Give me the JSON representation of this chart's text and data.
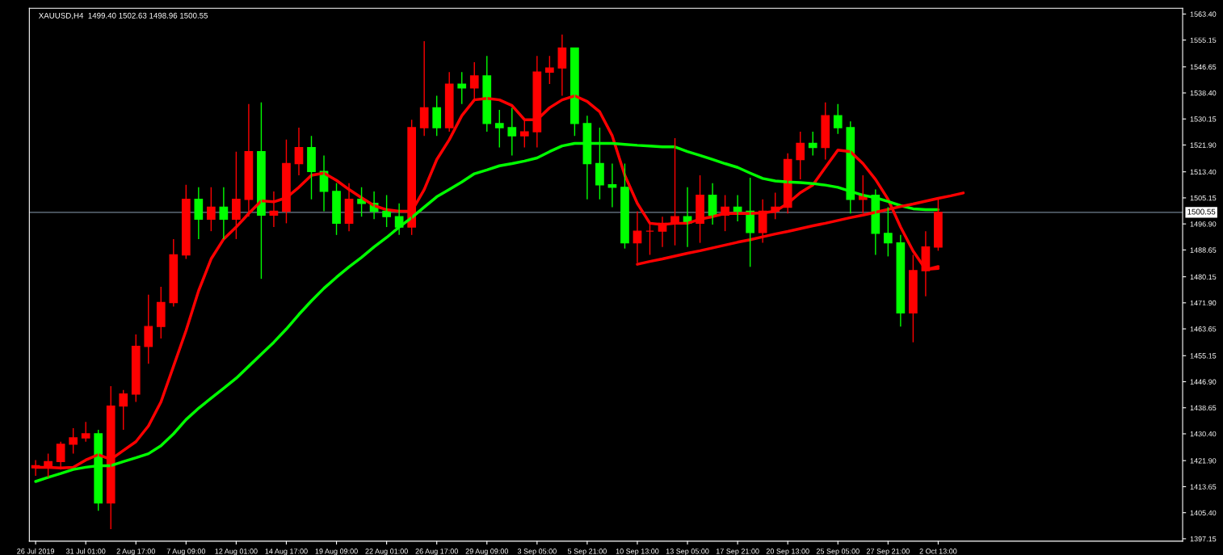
{
  "chart_data": {
    "type": "candlestick",
    "title": "XAUUSD,H4  1499.40 1502.63 1498.96 1500.55",
    "categories": [
      "26 Jul 2019",
      null,
      null,
      null,
      "31 Jul 01:00",
      null,
      null,
      null,
      "2 Aug 17:00",
      null,
      null,
      null,
      "7 Aug 09:00",
      null,
      null,
      null,
      "12 Aug 01:00",
      null,
      null,
      null,
      "14 Aug 17:00",
      null,
      null,
      null,
      "19 Aug 09:00",
      null,
      null,
      null,
      "22 Aug 01:00",
      null,
      null,
      null,
      "26 Aug 17:00",
      null,
      null,
      null,
      "29 Aug 09:00",
      null,
      null,
      null,
      "3 Sep 05:00",
      null,
      null,
      null,
      "5 Sep 21:00",
      null,
      null,
      null,
      "10 Sep 13:00",
      null,
      null,
      null,
      "13 Sep 05:00",
      null,
      null,
      null,
      "17 Sep 21:00",
      null,
      null,
      null,
      "20 Sep 13:00",
      null,
      null,
      null,
      "25 Sep 05:00",
      null,
      null,
      null,
      "27 Sep 21:00",
      null,
      null,
      null,
      "2 Oct 13:00",
      null,
      null,
      null,
      null,
      null,
      null,
      null,
      null,
      null,
      null,
      null,
      null,
      null,
      null,
      null,
      null,
      null,
      null,
      null
    ],
    "ohlc": [
      [
        1419.6,
        1422.1,
        1417.1,
        1420.3
      ],
      [
        1420.3,
        1424.1,
        1416.6,
        1421.6
      ],
      [
        1421.6,
        1427.9,
        1419.1,
        1427.1
      ],
      [
        1427.1,
        1432.2,
        1424.1,
        1429.1
      ],
      [
        1429.1,
        1434.2,
        1427.9,
        1430.4
      ],
      [
        1430.4,
        1431.7,
        1406.0,
        1408.5
      ],
      [
        1408.5,
        1445.5,
        1400.2,
        1439.2
      ],
      [
        1439.2,
        1444.3,
        1431.7,
        1443.0
      ],
      [
        1443.0,
        1461.9,
        1440.5,
        1458.1
      ],
      [
        1458.1,
        1474.5,
        1452.6,
        1464.4
      ],
      [
        1464.4,
        1477.0,
        1460.6,
        1472.0
      ],
      [
        1472.0,
        1492.1,
        1470.7,
        1487.1
      ],
      [
        1487.1,
        1509.3,
        1485.8,
        1504.7
      ],
      [
        1504.7,
        1508.5,
        1492.1,
        1498.4
      ],
      [
        1498.4,
        1508.5,
        1494.6,
        1502.2
      ],
      [
        1502.2,
        1508.5,
        1492.1,
        1498.4
      ],
      [
        1498.4,
        1519.8,
        1492.1,
        1504.7
      ],
      [
        1504.7,
        1534.9,
        1499.2,
        1519.8
      ],
      [
        1519.8,
        1535.4,
        1479.5,
        1499.7
      ],
      [
        1499.7,
        1507.2,
        1495.9,
        1500.9
      ],
      [
        1500.9,
        1523.6,
        1497.1,
        1516.0
      ],
      [
        1516.0,
        1527.4,
        1512.3,
        1521.1
      ],
      [
        1521.1,
        1524.8,
        1504.7,
        1513.5
      ],
      [
        1513.5,
        1518.6,
        1500.9,
        1507.2
      ],
      [
        1507.2,
        1509.8,
        1493.4,
        1497.1
      ],
      [
        1497.1,
        1509.8,
        1494.6,
        1504.7
      ],
      [
        1504.7,
        1508.5,
        1499.2,
        1503.4
      ],
      [
        1503.4,
        1507.2,
        1498.4,
        1500.9
      ],
      [
        1500.9,
        1506.0,
        1495.9,
        1499.2
      ],
      [
        1499.2,
        1503.4,
        1493.4,
        1495.9
      ],
      [
        1495.9,
        1529.9,
        1493.4,
        1527.4
      ],
      [
        1527.4,
        1554.8,
        1524.8,
        1533.7
      ],
      [
        1533.7,
        1537.5,
        1524.8,
        1527.4
      ],
      [
        1527.4,
        1545.0,
        1526.1,
        1541.2
      ],
      [
        1541.2,
        1545.0,
        1534.9,
        1540.0
      ],
      [
        1540.0,
        1548.1,
        1536.2,
        1543.8
      ],
      [
        1543.8,
        1550.1,
        1526.1,
        1528.7
      ],
      [
        1528.7,
        1533.0,
        1521.1,
        1527.4
      ],
      [
        1527.4,
        1533.7,
        1518.6,
        1524.8
      ],
      [
        1524.8,
        1529.9,
        1521.1,
        1526.1
      ],
      [
        1526.1,
        1550.1,
        1521.1,
        1545.0
      ],
      [
        1545.0,
        1550.1,
        1541.2,
        1546.3
      ],
      [
        1546.3,
        1556.9,
        1537.5,
        1552.6
      ],
      [
        1552.6,
        1552.6,
        1524.8,
        1528.7
      ],
      [
        1528.7,
        1531.2,
        1504.7,
        1516.0
      ],
      [
        1516.0,
        1527.4,
        1504.7,
        1509.3
      ],
      [
        1509.3,
        1516.0,
        1502.2,
        1508.5
      ],
      [
        1508.5,
        1516.0,
        1489.1,
        1490.9
      ],
      [
        1490.9,
        1500.9,
        1484.6,
        1494.6
      ],
      [
        1494.6,
        1497.1,
        1487.1,
        1494.6
      ],
      [
        1494.6,
        1499.2,
        1489.6,
        1497.1
      ],
      [
        1497.1,
        1524.1,
        1490.1,
        1499.2
      ],
      [
        1499.2,
        1508.5,
        1489.6,
        1497.1
      ],
      [
        1497.1,
        1512.3,
        1490.9,
        1506.0
      ],
      [
        1506.0,
        1509.8,
        1496.7,
        1499.7
      ],
      [
        1499.7,
        1506.0,
        1494.6,
        1502.2
      ],
      [
        1502.2,
        1506.0,
        1497.7,
        1500.9
      ],
      [
        1500.9,
        1511.5,
        1483.3,
        1494.2
      ],
      [
        1494.2,
        1504.7,
        1490.9,
        1500.9
      ],
      [
        1500.9,
        1506.8,
        1498.4,
        1502.2
      ],
      [
        1502.2,
        1519.3,
        1500.2,
        1517.3
      ],
      [
        1517.3,
        1526.1,
        1511.0,
        1522.4
      ],
      [
        1522.4,
        1526.1,
        1518.6,
        1521.1
      ],
      [
        1521.1,
        1535.4,
        1517.3,
        1531.2
      ],
      [
        1531.2,
        1534.9,
        1525.4,
        1527.4
      ],
      [
        1527.4,
        1529.4,
        1500.2,
        1504.7
      ],
      [
        1504.7,
        1512.3,
        1500.2,
        1506.0
      ],
      [
        1506.0,
        1507.8,
        1487.1,
        1493.9
      ],
      [
        1493.9,
        1502.2,
        1486.6,
        1490.9
      ],
      [
        1490.9,
        1493.4,
        1464.4,
        1468.7
      ],
      [
        1468.7,
        1487.1,
        1459.4,
        1482.1
      ],
      [
        1482.1,
        1494.6,
        1474.0,
        1489.6
      ],
      [
        1489.6,
        1504.7,
        1488.4,
        1500.55
      ],
      null,
      null,
      null,
      null,
      null,
      null,
      null,
      null,
      null,
      null,
      null,
      null,
      null,
      null,
      null,
      null,
      null,
      null,
      null
    ],
    "series": [
      {
        "type": "line",
        "color": "#ff0000",
        "values": [
          1419.8,
          1419.8,
          1419.6,
          1419.8,
          1422.1,
          1423.8,
          1422.3,
          1425.1,
          1427.9,
          1432.9,
          1440.5,
          1451.8,
          1463.1,
          1475.7,
          1485.8,
          1492.1,
          1495.9,
          1500.2,
          1504.2,
          1503.9,
          1505.2,
          1508.5,
          1512.3,
          1513.0,
          1510.7,
          1507.8,
          1505.2,
          1502.7,
          1501.4,
          1500.9,
          1500.9,
          1507.8,
          1517.3,
          1523.6,
          1531.2,
          1536.2,
          1536.7,
          1536.2,
          1534.4,
          1529.9,
          1529.9,
          1533.7,
          1536.2,
          1537.5,
          1535.7,
          1532.4,
          1524.8,
          1512.3,
          1503.4,
          1497.1,
          1496.7,
          1497.1,
          1497.1,
          1498.4,
          1499.2,
          1500.2,
          1500.2,
          1500.2,
          1500.4,
          1500.9,
          1503.4,
          1506.8,
          1509.2,
          1514.8,
          1520.3,
          1519.8,
          1516.0,
          1511.0,
          1504.7,
          1495.9,
          1488.3,
          1482.5,
          1482.8,
          null,
          null,
          null,
          null,
          null,
          null,
          null,
          null,
          null,
          null,
          null,
          null,
          null,
          null,
          null,
          null,
          null,
          null,
          null
        ]
      },
      {
        "type": "line",
        "color": "#00ff00",
        "values": [
          1415.3,
          1416.6,
          1417.8,
          1419.1,
          1419.8,
          1420.3,
          1420.3,
          1421.6,
          1422.8,
          1424.1,
          1426.6,
          1430.4,
          1434.9,
          1438.5,
          1441.7,
          1444.8,
          1448.0,
          1451.8,
          1455.6,
          1459.4,
          1463.6,
          1468.2,
          1472.5,
          1476.5,
          1480.0,
          1483.3,
          1486.3,
          1489.6,
          1492.6,
          1495.9,
          1498.9,
          1502.2,
          1505.5,
          1507.8,
          1510.2,
          1512.8,
          1514.0,
          1515.3,
          1516.0,
          1516.8,
          1517.8,
          1519.8,
          1521.6,
          1522.4,
          1522.4,
          1522.4,
          1522.4,
          1522.1,
          1521.8,
          1521.6,
          1521.3,
          1521.3,
          1519.8,
          1518.6,
          1517.3,
          1516.0,
          1514.8,
          1513.0,
          1511.3,
          1510.5,
          1510.2,
          1510.0,
          1509.7,
          1509.2,
          1508.5,
          1507.2,
          1506.0,
          1505.2,
          1504.0,
          1502.7,
          1501.7,
          1501.4,
          1501.4,
          null,
          null,
          null,
          null,
          null,
          null,
          null,
          null,
          null,
          null,
          null,
          null,
          null,
          null,
          null,
          null,
          null,
          null,
          null
        ]
      },
      {
        "type": "line",
        "color": "#ff0000",
        "values": [
          null,
          null,
          null,
          null,
          null,
          null,
          null,
          null,
          null,
          null,
          null,
          null,
          null,
          null,
          null,
          null,
          null,
          null,
          null,
          null,
          null,
          null,
          null,
          null,
          null,
          null,
          null,
          null,
          null,
          null,
          null,
          null,
          null,
          null,
          null,
          null,
          null,
          null,
          null,
          null,
          null,
          null,
          null,
          null,
          null,
          null,
          null,
          null,
          1484.1,
          1485.0,
          1485.8,
          1486.7,
          1487.6,
          1488.4,
          1489.3,
          1490.2,
          1491.1,
          1491.9,
          1492.8,
          1493.7,
          1494.5,
          1495.4,
          1496.3,
          1497.1,
          1498.0,
          1498.9,
          1499.7,
          1500.6,
          1501.5,
          1502.4,
          1503.2,
          1504.1,
          1505.0,
          1505.8,
          1506.7,
          null,
          null,
          null,
          null,
          null,
          null,
          null,
          null,
          null,
          null,
          null,
          null,
          null,
          null,
          null,
          null,
          null
        ]
      },
      {
        "type": "line",
        "color": "#ff0000",
        "values": [
          null,
          null,
          null,
          null,
          null,
          null,
          null,
          null,
          null,
          null,
          null,
          null,
          null,
          null,
          null,
          null,
          null,
          null,
          null,
          null,
          null,
          null,
          null,
          null,
          null,
          null,
          null,
          null,
          null,
          null,
          null,
          null,
          null,
          null,
          null,
          null,
          null,
          null,
          null,
          null,
          null,
          null,
          null,
          null,
          null,
          null,
          null,
          null,
          null,
          null,
          null,
          null,
          null,
          null,
          null,
          null,
          null,
          null,
          null,
          null,
          null,
          null,
          null,
          null,
          null,
          null,
          null,
          null,
          null,
          null,
          null,
          1482.4,
          1483.4,
          null,
          null,
          null,
          null,
          null,
          null,
          null,
          null,
          null,
          null,
          null,
          null,
          null,
          null,
          null,
          null,
          null,
          null,
          null
        ]
      }
    ],
    "ylim": [
      1396.4,
      1565.2
    ],
    "yticks": [
      {
        "value": 1563.4,
        "label": "1563.40"
      },
      {
        "value": 1555.15,
        "label": "1555.15"
      },
      {
        "value": 1546.65,
        "label": "1546.65"
      },
      {
        "value": 1538.4,
        "label": "1538.40"
      },
      {
        "value": 1530.15,
        "label": "1530.15"
      },
      {
        "value": 1521.9,
        "label": "1521.90"
      },
      {
        "value": 1513.4,
        "label": "1513.40"
      },
      {
        "value": 1505.15,
        "label": "1505.15"
      },
      {
        "value": 1496.9,
        "label": "1496.90"
      },
      {
        "value": 1488.65,
        "label": "1488.65"
      },
      {
        "value": 1480.15,
        "label": "1480.15"
      },
      {
        "value": 1471.9,
        "label": "1471.90"
      },
      {
        "value": 1463.65,
        "label": "1463.65"
      },
      {
        "value": 1455.15,
        "label": "1455.15"
      },
      {
        "value": 1446.9,
        "label": "1446.90"
      },
      {
        "value": 1438.65,
        "label": "1438.65"
      },
      {
        "value": 1430.4,
        "label": "1430.40"
      },
      {
        "value": 1421.9,
        "label": "1421.90"
      },
      {
        "value": 1413.65,
        "label": "1413.65"
      },
      {
        "value": 1405.4,
        "label": "1405.40"
      },
      {
        "value": 1397.15,
        "label": "1397.15"
      }
    ],
    "ref_lines": [
      {
        "axis": "y",
        "value": 1500.55,
        "label": "1500.55",
        "color": "#708090"
      }
    ]
  }
}
